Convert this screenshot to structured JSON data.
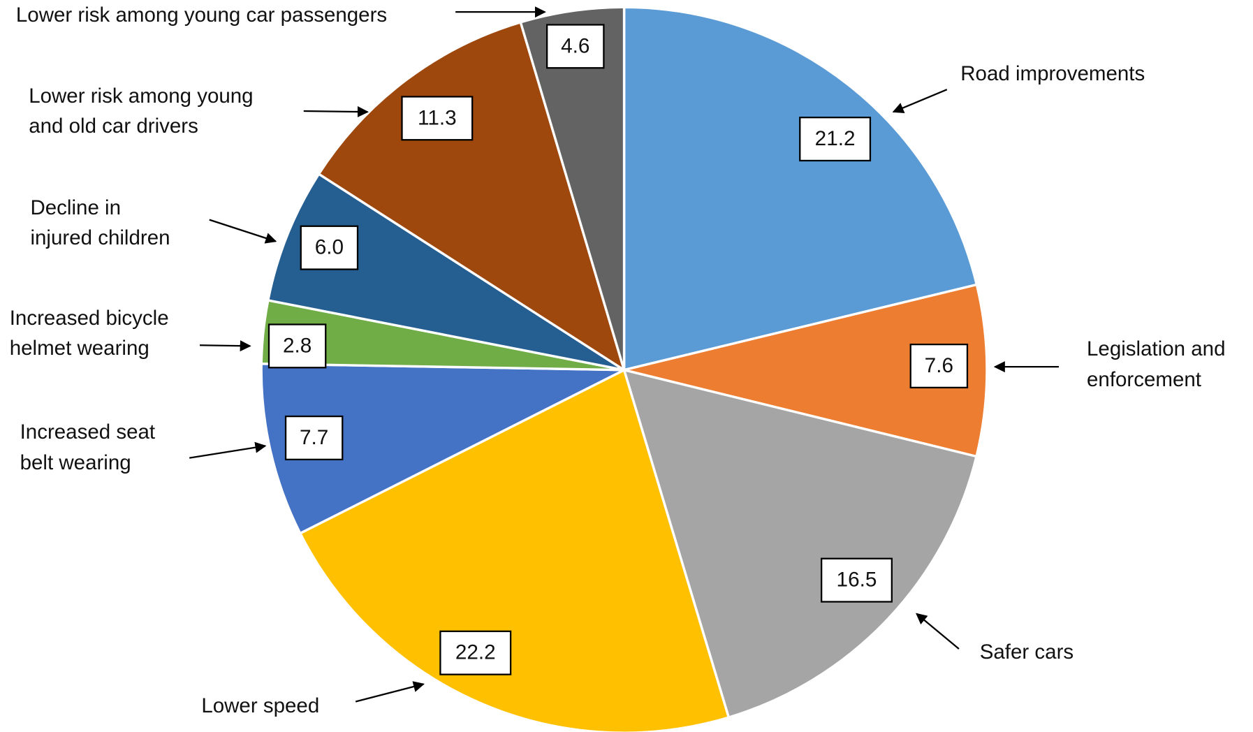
{
  "chart_data": {
    "type": "pie",
    "categories": [
      "Road improvements",
      "Legislation and\nenforcement",
      "Safer cars",
      "Lower speed",
      "Increased seat\nbelt wearing",
      "Increased bicycle\nhelmet wearing",
      "Decline in\ninjured children",
      "Lower risk among young\nand old car drivers",
      "Lower risk among young car passengers"
    ],
    "values": [
      21.2,
      7.6,
      16.5,
      22.2,
      7.7,
      2.8,
      6.0,
      11.3,
      4.6
    ],
    "value_labels": [
      "21.2",
      "7.6",
      "16.5",
      "22.2",
      "7.7",
      "2.8",
      "6.0",
      "11.3",
      "4.6"
    ],
    "colors": [
      "#5b9bd5",
      "#ed7d31",
      "#a5a5a5",
      "#ffc000",
      "#4472c4",
      "#70ad47",
      "#255e91",
      "#9e480e",
      "#636363"
    ]
  }
}
